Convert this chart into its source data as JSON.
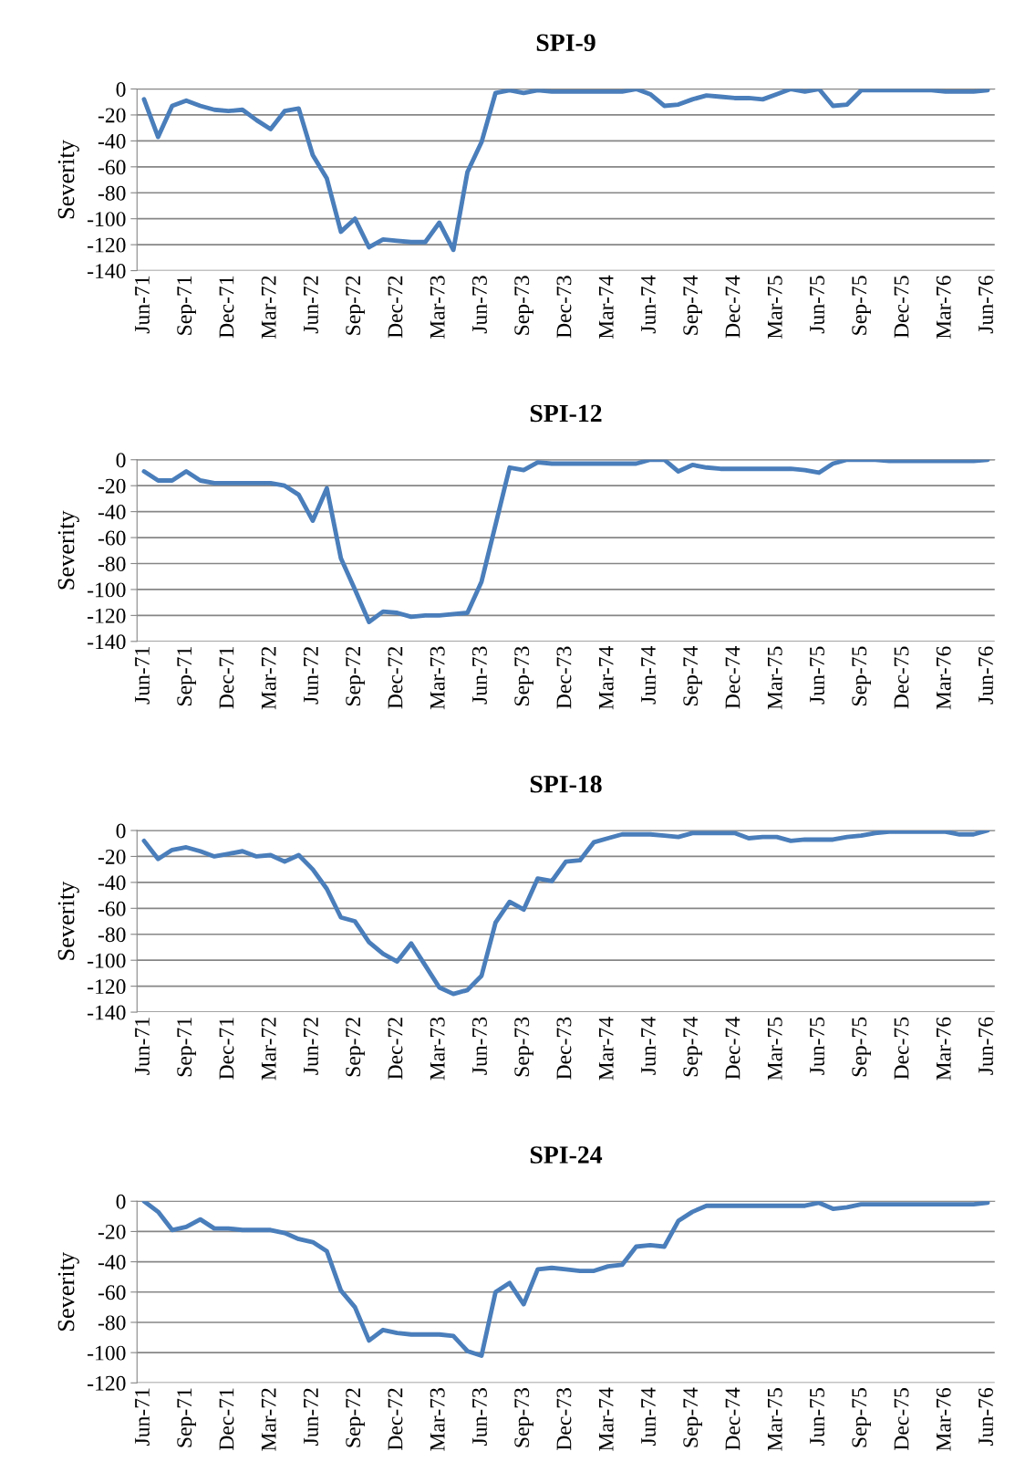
{
  "chart_data": [
    {
      "type": "line",
      "title": "SPI-9",
      "ylabel": "Severity",
      "grid": "y",
      "marker": "none",
      "line_style": "solid",
      "ylim": [
        -140,
        0
      ],
      "yticks": [
        -140,
        -120,
        -100,
        -80,
        -60,
        -40,
        -20,
        0
      ],
      "categories": [
        "Jun-71",
        null,
        null,
        "Sep-71",
        null,
        null,
        "Dec-71",
        null,
        null,
        "Mar-72",
        null,
        null,
        "Jun-72",
        null,
        null,
        "Sep-72",
        null,
        null,
        "Dec-72",
        null,
        null,
        "Mar-73",
        null,
        null,
        "Jun-73",
        null,
        null,
        "Sep-73",
        null,
        null,
        "Dec-73",
        null,
        null,
        "Mar-74",
        null,
        null,
        "Jun-74",
        null,
        null,
        "Sep-74",
        null,
        null,
        "Dec-74",
        null,
        null,
        "Mar-75",
        null,
        null,
        "Jun-75",
        null,
        null,
        "Sep-75",
        null,
        null,
        "Dec-75",
        null,
        null,
        "Mar-76",
        null,
        null,
        "Jun-76"
      ],
      "series": [
        {
          "color": "#4a7ebb",
          "values": [
            -8,
            -37,
            -13,
            -9,
            -13,
            -16,
            -17,
            -16,
            -24,
            -31,
            -17,
            -15,
            -51,
            -69,
            -110,
            -100,
            -122,
            -116,
            -117,
            -118,
            -118,
            -103,
            -124,
            -64,
            -41,
            -3,
            -1,
            -3,
            -1,
            -2,
            -2,
            -2,
            -2,
            -2,
            -2,
            0,
            -4,
            -13,
            -12,
            -8,
            -5,
            -6,
            -7,
            -7,
            -8,
            -4,
            0,
            -2,
            0,
            -13,
            -12,
            -1,
            -1,
            -1,
            -1,
            -1,
            -1,
            -2,
            -2,
            -2,
            -1
          ]
        }
      ]
    },
    {
      "type": "line",
      "title": "SPI-12",
      "ylabel": "Severity",
      "grid": "y",
      "marker": "none",
      "line_style": "solid",
      "ylim": [
        -140,
        0
      ],
      "yticks": [
        -140,
        -120,
        -100,
        -80,
        -60,
        -40,
        -20,
        0
      ],
      "categories": [
        "Jun-71",
        null,
        null,
        "Sep-71",
        null,
        null,
        "Dec-71",
        null,
        null,
        "Mar-72",
        null,
        null,
        "Jun-72",
        null,
        null,
        "Sep-72",
        null,
        null,
        "Dec-72",
        null,
        null,
        "Mar-73",
        null,
        null,
        "Jun-73",
        null,
        null,
        "Sep-73",
        null,
        null,
        "Dec-73",
        null,
        null,
        "Mar-74",
        null,
        null,
        "Jun-74",
        null,
        null,
        "Sep-74",
        null,
        null,
        "Dec-74",
        null,
        null,
        "Mar-75",
        null,
        null,
        "Jun-75",
        null,
        null,
        "Sep-75",
        null,
        null,
        "Dec-75",
        null,
        null,
        "Mar-76",
        null,
        null,
        "Jun-76"
      ],
      "series": [
        {
          "color": "#4a7ebb",
          "values": [
            -9,
            -16,
            -16,
            -9,
            -16,
            -18,
            -18,
            -18,
            -18,
            -18,
            -20,
            -27,
            -47,
            -22,
            -76,
            -100,
            -125,
            -117,
            -118,
            -121,
            -120,
            -120,
            -119,
            -118,
            -94,
            -50,
            -6,
            -8,
            -2,
            -3,
            -3,
            -3,
            -3,
            -3,
            -3,
            -3,
            0,
            0,
            -9,
            -4,
            -6,
            -7,
            -7,
            -7,
            -7,
            -7,
            -7,
            -8,
            -10,
            -3,
            0,
            0,
            0,
            -1,
            -1,
            -1,
            -1,
            -1,
            -1,
            -1,
            0
          ]
        }
      ]
    },
    {
      "type": "line",
      "title": "SPI-18",
      "ylabel": "Severity",
      "grid": "y",
      "marker": "none",
      "line_style": "solid",
      "ylim": [
        -140,
        0
      ],
      "yticks": [
        -140,
        -120,
        -100,
        -80,
        -60,
        -40,
        -20,
        0
      ],
      "categories": [
        "Jun-71",
        null,
        null,
        "Sep-71",
        null,
        null,
        "Dec-71",
        null,
        null,
        "Mar-72",
        null,
        null,
        "Jun-72",
        null,
        null,
        "Sep-72",
        null,
        null,
        "Dec-72",
        null,
        null,
        "Mar-73",
        null,
        null,
        "Jun-73",
        null,
        null,
        "Sep-73",
        null,
        null,
        "Dec-73",
        null,
        null,
        "Mar-74",
        null,
        null,
        "Jun-74",
        null,
        null,
        "Sep-74",
        null,
        null,
        "Dec-74",
        null,
        null,
        "Mar-75",
        null,
        null,
        "Jun-75",
        null,
        null,
        "Sep-75",
        null,
        null,
        "Dec-75",
        null,
        null,
        "Mar-76",
        null,
        null,
        "Jun-76"
      ],
      "series": [
        {
          "color": "#4a7ebb",
          "values": [
            -8,
            -22,
            -15,
            -13,
            -16,
            -20,
            -18,
            -16,
            -20,
            -19,
            -24,
            -19,
            -30,
            -45,
            -67,
            -70,
            -86,
            -95,
            -101,
            -87,
            -104,
            -121,
            -126,
            -123,
            -112,
            -71,
            -55,
            -61,
            -37,
            -39,
            -24,
            -23,
            -9,
            -6,
            -3,
            -3,
            -3,
            -4,
            -5,
            -2,
            -2,
            -2,
            -2,
            -6,
            -5,
            -5,
            -8,
            -7,
            -7,
            -7,
            -5,
            -4,
            -2,
            -1,
            -1,
            -1,
            -1,
            -1,
            -3,
            -3,
            0
          ]
        }
      ]
    },
    {
      "type": "line",
      "title": "SPI-24",
      "ylabel": "Severity",
      "grid": "y",
      "marker": "none",
      "line_style": "solid",
      "ylim": [
        -120,
        0
      ],
      "yticks": [
        -120,
        -100,
        -80,
        -60,
        -40,
        -20,
        0
      ],
      "categories": [
        "Jun-71",
        null,
        null,
        "Sep-71",
        null,
        null,
        "Dec-71",
        null,
        null,
        "Mar-72",
        null,
        null,
        "Jun-72",
        null,
        null,
        "Sep-72",
        null,
        null,
        "Dec-72",
        null,
        null,
        "Mar-73",
        null,
        null,
        "Jun-73",
        null,
        null,
        "Sep-73",
        null,
        null,
        "Dec-73",
        null,
        null,
        "Mar-74",
        null,
        null,
        "Jun-74",
        null,
        null,
        "Sep-74",
        null,
        null,
        "Dec-74",
        null,
        null,
        "Mar-75",
        null,
        null,
        "Jun-75",
        null,
        null,
        "Sep-75",
        null,
        null,
        "Dec-75",
        null,
        null,
        "Mar-76",
        null,
        null,
        "Jun-76"
      ],
      "series": [
        {
          "color": "#4a7ebb",
          "values": [
            0,
            -7,
            -19,
            -17,
            -12,
            -18,
            -18,
            -19,
            -19,
            -19,
            -21,
            -25,
            -27,
            -33,
            -59,
            -70,
            -92,
            -85,
            -87,
            -88,
            -88,
            -88,
            -89,
            -99,
            -102,
            -60,
            -54,
            -68,
            -45,
            -44,
            -45,
            -46,
            -46,
            -43,
            -42,
            -30,
            -29,
            -30,
            -13,
            -7,
            -3,
            -3,
            -3,
            -3,
            -3,
            -3,
            -3,
            -3,
            -1,
            -5,
            -4,
            -2,
            -2,
            -2,
            -2,
            -2,
            -2,
            -2,
            -2,
            -2,
            -1
          ]
        }
      ]
    }
  ]
}
